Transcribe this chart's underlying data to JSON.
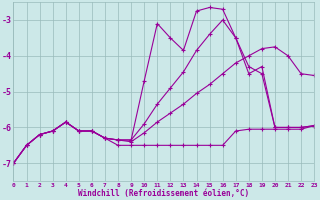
{
  "background_color": "#cce8e8",
  "grid_color": "#99bbbb",
  "line_color": "#990099",
  "xlabel": "Windchill (Refroidissement éolien,°C)",
  "ylim": [
    -7.5,
    -2.5
  ],
  "xlim": [
    0,
    23
  ],
  "yticks": [
    -7,
    -6,
    -5,
    -4,
    -3
  ],
  "xticks": [
    0,
    1,
    2,
    3,
    4,
    5,
    6,
    7,
    8,
    9,
    10,
    11,
    12,
    13,
    14,
    15,
    16,
    17,
    18,
    19,
    20,
    21,
    22,
    23
  ],
  "series": [
    [
      -7.0,
      -6.5,
      -6.2,
      -6.1,
      -5.85,
      -6.1,
      -6.1,
      -6.3,
      -6.35,
      -6.35,
      -4.7,
      -3.1,
      -3.5,
      -3.85,
      -2.75,
      -2.65,
      -2.7,
      -3.5,
      -4.5,
      -4.3,
      -6.0,
      -6.0,
      -6.0,
      -5.95
    ],
    [
      -7.0,
      -6.5,
      -6.2,
      -6.1,
      -5.85,
      -6.1,
      -6.1,
      -6.3,
      -6.35,
      -6.35,
      -5.9,
      -5.35,
      -4.9,
      -4.45,
      -3.85,
      -3.4,
      -3.0,
      -3.5,
      -4.3,
      -4.5,
      -6.0,
      -6.0,
      -6.0,
      -5.95
    ],
    [
      -7.0,
      -6.5,
      -6.2,
      -6.1,
      -5.85,
      -6.1,
      -6.1,
      -6.3,
      -6.35,
      -6.4,
      -6.15,
      -5.85,
      -5.6,
      -5.35,
      -5.05,
      -4.8,
      -4.5,
      -4.2,
      -4.0,
      -3.8,
      -3.75,
      -4.0,
      -4.5,
      -4.55
    ],
    [
      -7.0,
      -6.5,
      -6.2,
      -6.1,
      -5.85,
      -6.1,
      -6.1,
      -6.3,
      -6.5,
      -6.5,
      -6.5,
      -6.5,
      -6.5,
      -6.5,
      -6.5,
      -6.5,
      -6.5,
      -6.1,
      -6.05,
      -6.05,
      -6.05,
      -6.05,
      -6.05,
      -5.95
    ]
  ]
}
